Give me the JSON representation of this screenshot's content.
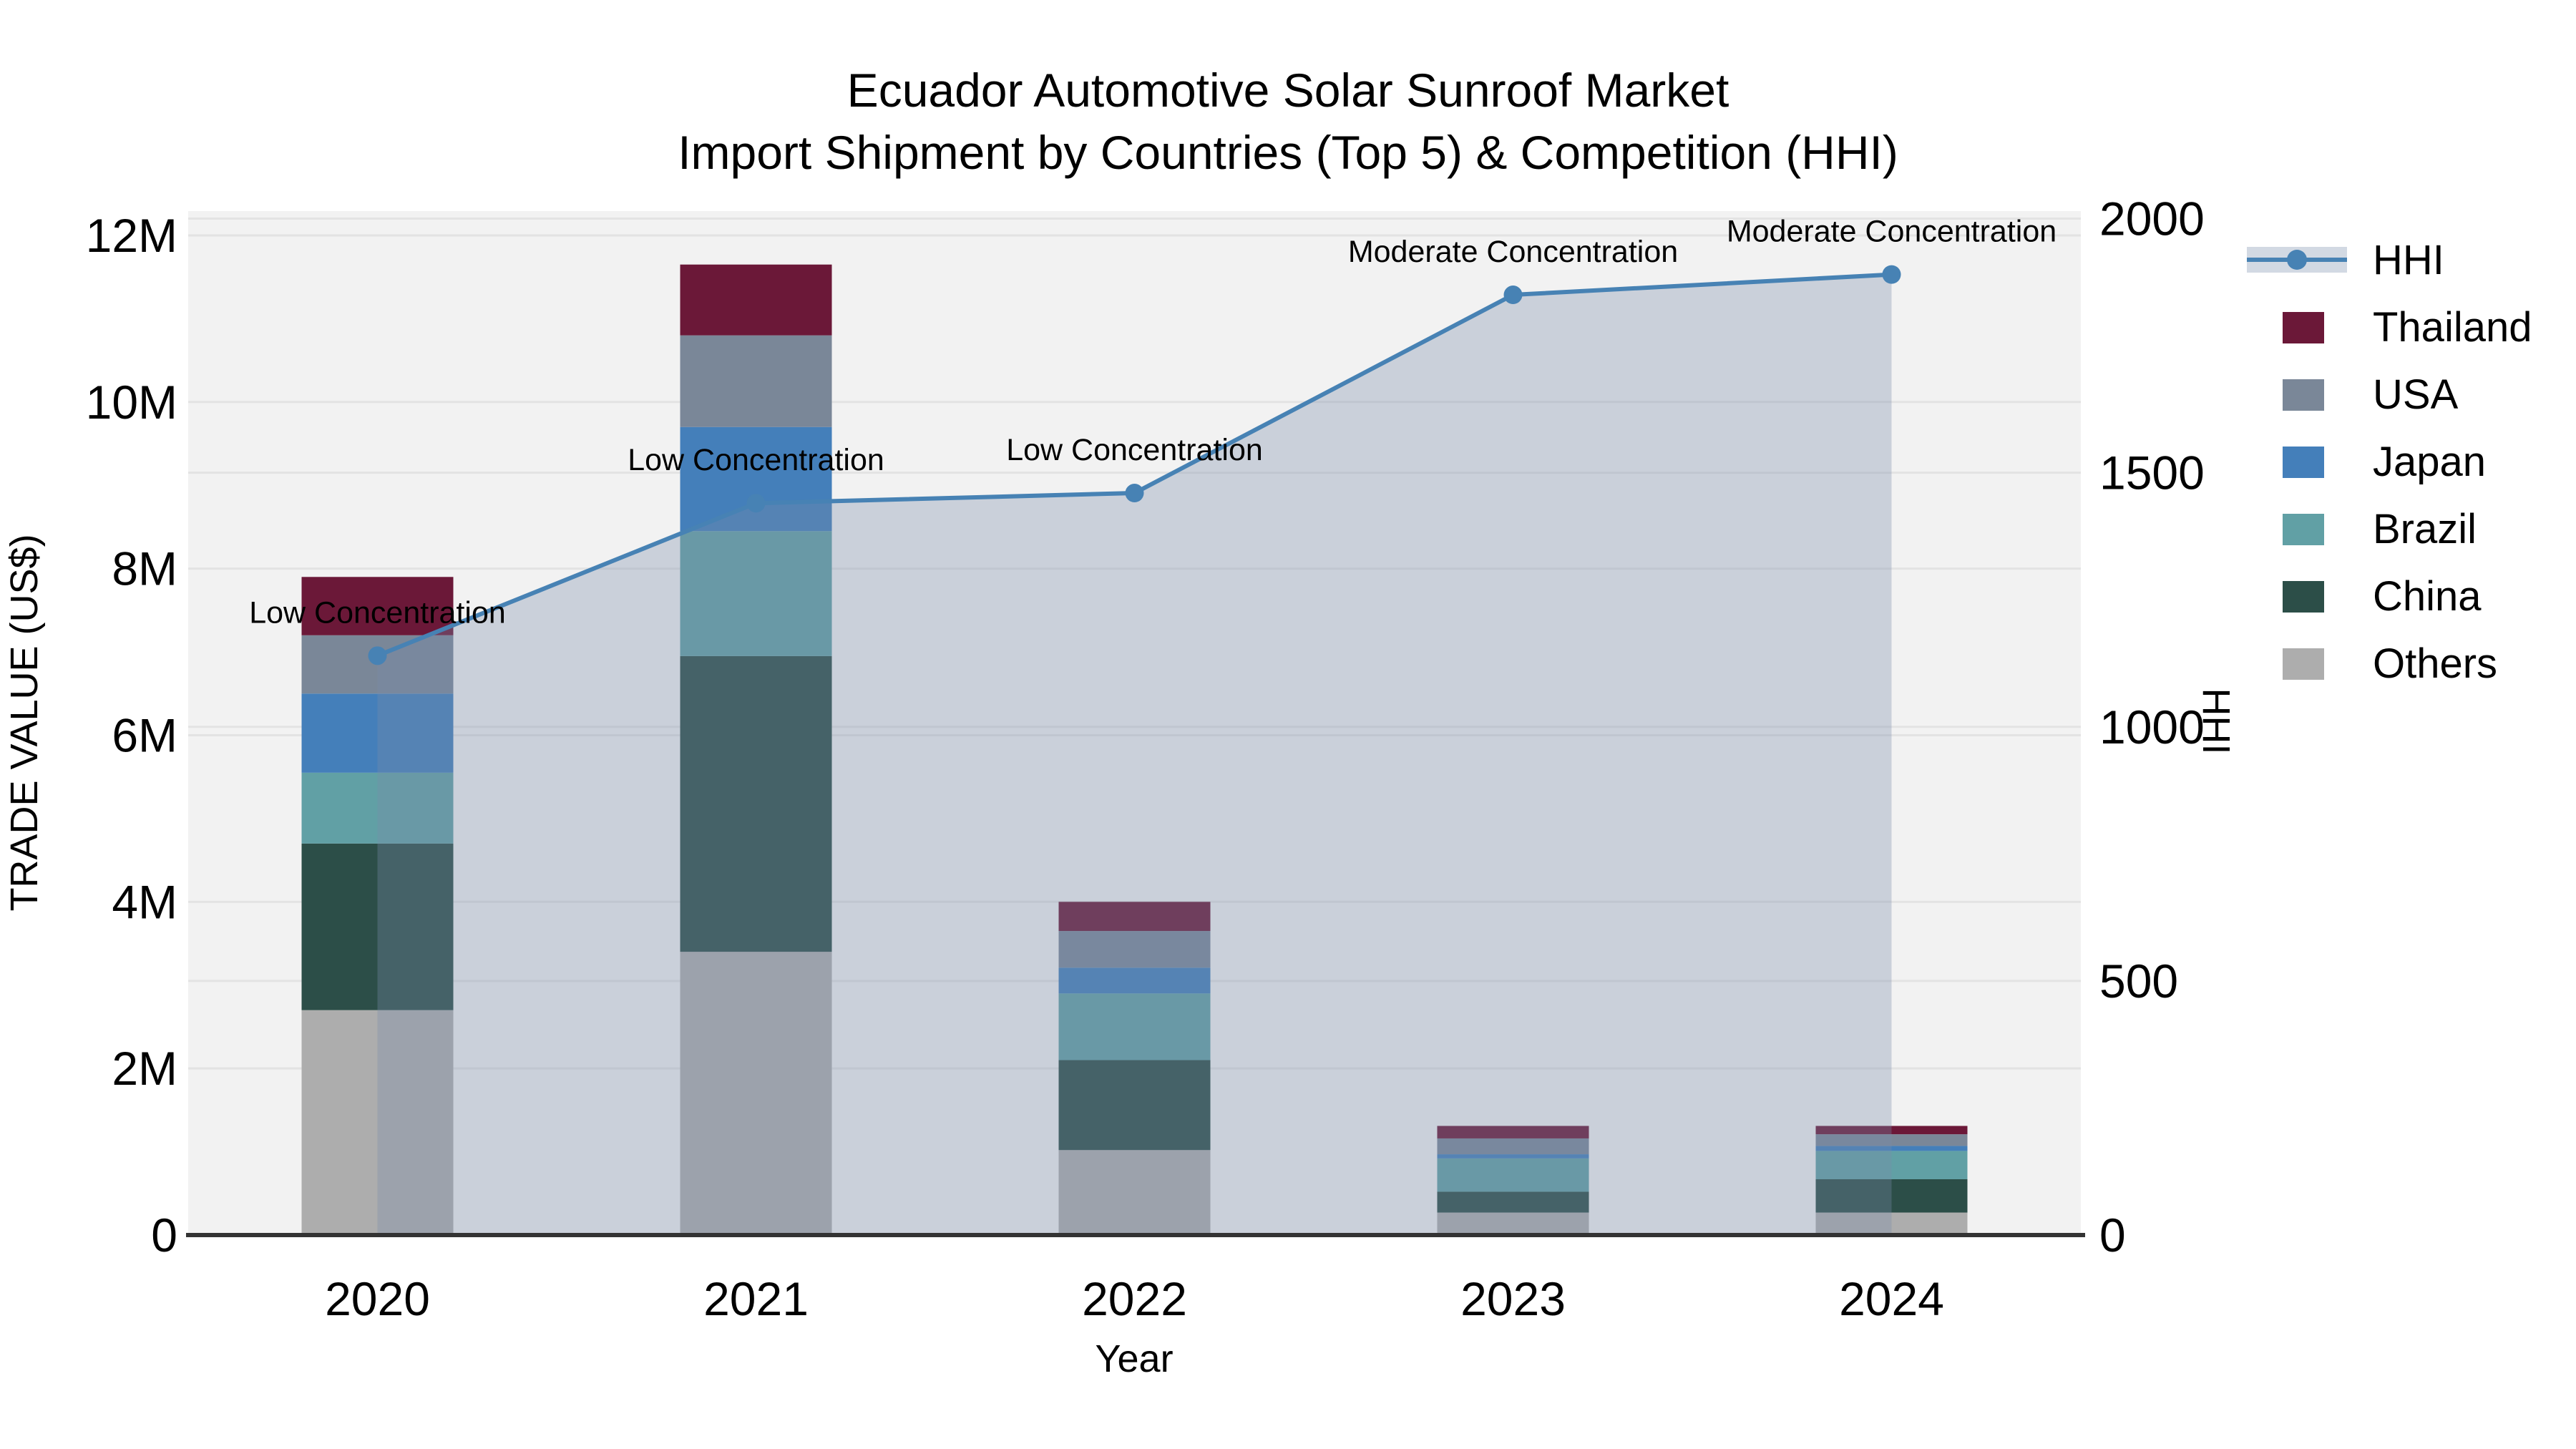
{
  "title": {
    "line1": "Ecuador Automotive Solar Sunroof Market",
    "line2": "Import Shipment by Countries (Top 5) & Competition (HHI)"
  },
  "axes": {
    "y_left": {
      "title": "TRADE VALUE (US$)",
      "tick_labels": [
        "0",
        "2M",
        "4M",
        "6M",
        "8M",
        "10M",
        "12M"
      ],
      "tick_values_millions": [
        0,
        2,
        4,
        6,
        8,
        10,
        12
      ]
    },
    "y_right": {
      "title": "HHI",
      "tick_labels": [
        "0",
        "500",
        "1000",
        "1500",
        "2000"
      ],
      "tick_values": [
        0,
        500,
        1000,
        1500,
        2000
      ]
    },
    "x": {
      "title": "Year",
      "categories": [
        "2020",
        "2021",
        "2022",
        "2023",
        "2024"
      ]
    }
  },
  "legend": {
    "order": [
      "HHI",
      "Thailand",
      "USA",
      "Japan",
      "Brazil",
      "China",
      "Others"
    ]
  },
  "chart_data": {
    "type": "bar+line",
    "categories": [
      "2020",
      "2021",
      "2022",
      "2023",
      "2024"
    ],
    "bar_unit": "million USD",
    "stack_order_bottom_to_top": [
      "Others",
      "China",
      "Brazil",
      "Japan",
      "USA",
      "Thailand"
    ],
    "series": [
      {
        "name": "Others",
        "values_millions": [
          2.7,
          3.4,
          1.02,
          0.27,
          0.27
        ],
        "color": "#ADADAD"
      },
      {
        "name": "China",
        "values_millions": [
          2.0,
          3.55,
          1.08,
          0.25,
          0.4
        ],
        "color": "#2C4E48"
      },
      {
        "name": "Brazil",
        "values_millions": [
          0.85,
          1.5,
          0.8,
          0.4,
          0.34
        ],
        "color": "#61A0A5"
      },
      {
        "name": "Japan",
        "values_millions": [
          0.95,
          1.25,
          0.31,
          0.05,
          0.06
        ],
        "color": "#447FBA"
      },
      {
        "name": "USA",
        "values_millions": [
          0.7,
          1.1,
          0.44,
          0.19,
          0.14
        ],
        "color": "#7A8798"
      },
      {
        "name": "Thailand",
        "values_millions": [
          0.7,
          0.85,
          0.35,
          0.15,
          0.1
        ],
        "color": "#6B1838"
      }
    ],
    "bar_totals_millions": [
      7.9,
      11.65,
      4.0,
      1.31,
      1.31
    ],
    "line_series": {
      "name": "HHI",
      "values": [
        1140,
        1440,
        1460,
        1850,
        1890
      ],
      "color": "#4782B4",
      "area_fill": "rgba(120,140,170,0.33)"
    },
    "annotations": [
      {
        "category": "2020",
        "text": "Low Concentration"
      },
      {
        "category": "2021",
        "text": "Low Concentration"
      },
      {
        "category": "2022",
        "text": "Low Concentration"
      },
      {
        "category": "2023",
        "text": "Moderate Concentration"
      },
      {
        "category": "2024",
        "text": "Moderate Concentration"
      }
    ],
    "ylim_left_millions": [
      0,
      12.3
    ],
    "ylim_right": [
      0,
      2000
    ],
    "grid": true,
    "legend_position": "right",
    "plot_bg": "#f2f2f2",
    "grid_color": "#e3e3e3",
    "axis_line_color": "#333333"
  }
}
